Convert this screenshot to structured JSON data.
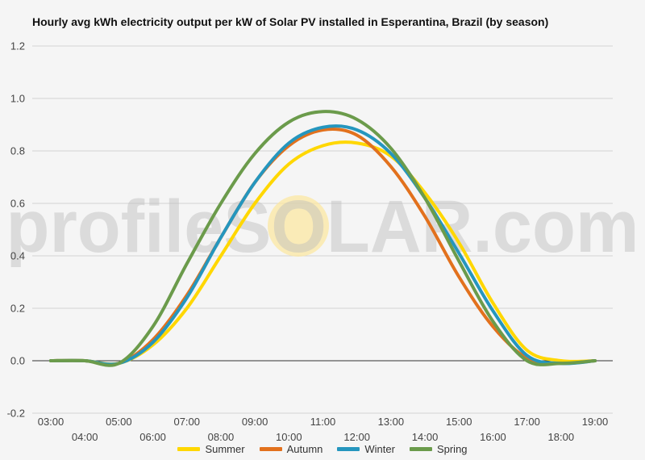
{
  "chart_data": {
    "type": "line",
    "title": "Hourly avg kWh electricity output per kW of Solar PV installed in Esperantina, Brazil (by season)",
    "xlabel": "",
    "ylabel": "",
    "ylim": [
      -0.2,
      1.2
    ],
    "yticks": [
      "-0.2",
      "0.0",
      "0.2",
      "0.4",
      "0.6",
      "0.8",
      "1.0",
      "1.2"
    ],
    "x": [
      "03:00",
      "04:00",
      "05:00",
      "06:00",
      "07:00",
      "08:00",
      "09:00",
      "10:00",
      "11:00",
      "12:00",
      "13:00",
      "14:00",
      "15:00",
      "16:00",
      "17:00",
      "18:00",
      "19:00"
    ],
    "grid": true,
    "legend_position": "bottom",
    "watermark": "profileSOLAR.com",
    "series": [
      {
        "name": "Summer",
        "color": "#ffd700",
        "values": [
          0,
          0,
          -0.01,
          0.06,
          0.2,
          0.4,
          0.6,
          0.75,
          0.82,
          0.83,
          0.78,
          0.64,
          0.45,
          0.22,
          0.04,
          0.0,
          0
        ]
      },
      {
        "name": "Autumn",
        "color": "#e2711d",
        "values": [
          0,
          0,
          -0.01,
          0.08,
          0.25,
          0.47,
          0.68,
          0.82,
          0.88,
          0.86,
          0.74,
          0.55,
          0.32,
          0.13,
          0.01,
          -0.01,
          0
        ]
      },
      {
        "name": "Winter",
        "color": "#2596be",
        "values": [
          0,
          0,
          -0.01,
          0.07,
          0.24,
          0.47,
          0.68,
          0.83,
          0.89,
          0.88,
          0.79,
          0.62,
          0.41,
          0.19,
          0.02,
          -0.01,
          0
        ]
      },
      {
        "name": "Spring",
        "color": "#6b9b4b",
        "values": [
          0,
          0,
          -0.01,
          0.13,
          0.37,
          0.6,
          0.79,
          0.91,
          0.95,
          0.92,
          0.81,
          0.62,
          0.38,
          0.15,
          0.0,
          -0.01,
          0
        ]
      }
    ]
  }
}
